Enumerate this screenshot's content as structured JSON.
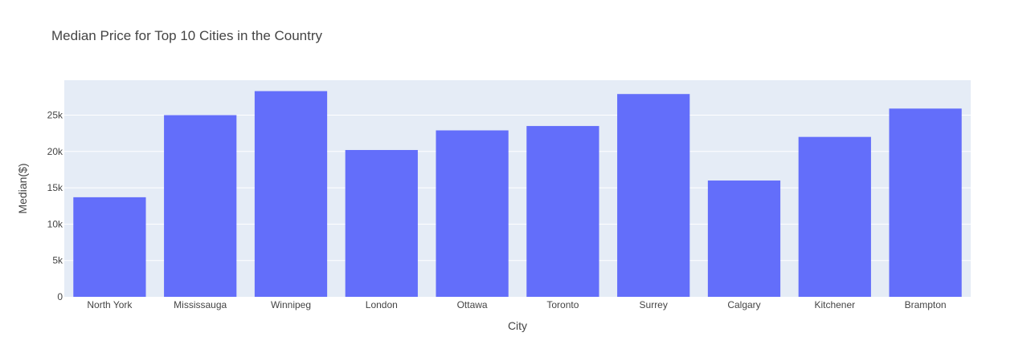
{
  "chart_data": {
    "type": "bar",
    "title": "Median Price for Top 10 Cities in the Country",
    "xlabel": "City",
    "ylabel": "Median($)",
    "categories": [
      "North York",
      "Mississauga",
      "Winnipeg",
      "London",
      "Ottawa",
      "Toronto",
      "Surrey",
      "Calgary",
      "Kitchener",
      "Brampton"
    ],
    "values": [
      13700,
      25000,
      28300,
      20200,
      22900,
      23500,
      27900,
      16000,
      22000,
      25900
    ],
    "ylim": [
      0,
      29800
    ],
    "yticks": [
      0,
      5000,
      10000,
      15000,
      20000,
      25000
    ],
    "ytick_labels": [
      "0",
      "5k",
      "10k",
      "15k",
      "20k",
      "25k"
    ],
    "grid": true,
    "colors": {
      "bar": "#636efa",
      "plot_bg": "#e5ecf6",
      "grid": "#ffffff"
    }
  }
}
